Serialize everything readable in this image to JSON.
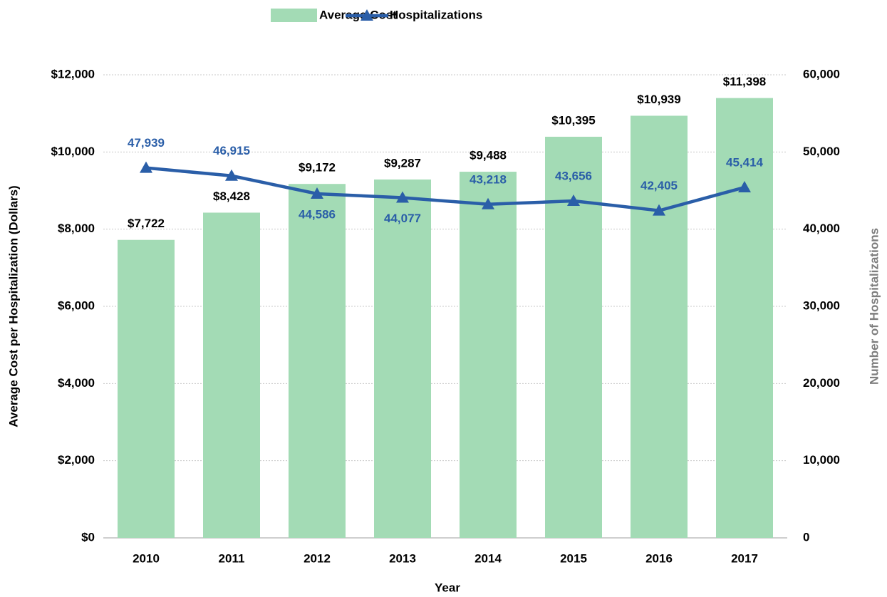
{
  "chart_data": {
    "type": "bar_line",
    "legend": "top",
    "grid": true,
    "categories": [
      "2010",
      "2011",
      "2012",
      "2013",
      "2014",
      "2015",
      "2016",
      "2017"
    ],
    "series": [
      {
        "name": "Average Cost",
        "type": "bar",
        "color": "#a3dbb5",
        "values": [
          7722,
          8428,
          9172,
          9287,
          9488,
          10395,
          10939,
          11398
        ],
        "value_labels": [
          "$7,722",
          "$8,428",
          "$9,172",
          "$9,287",
          "$9,488",
          "$10,395",
          "$10,939",
          "$11,398"
        ]
      },
      {
        "name": "Hospitalizations",
        "type": "line",
        "axis": "y2",
        "color": "#2a5ea8",
        "values": [
          47939,
          46915,
          44586,
          44077,
          43218,
          43656,
          42405,
          45414
        ],
        "value_labels": [
          "47,939",
          "46,915",
          "44,586",
          "44,077",
          "43,218",
          "43,656",
          "42,405",
          "45,414"
        ]
      }
    ],
    "xlabel": "Year",
    "ylabel": "Average Cost per Hospitalization (Dollars)",
    "y2label": "Number of Hospitalizations",
    "ylim": [
      0,
      12000
    ],
    "yticks": [
      {
        "value": 0,
        "label": "$0"
      },
      {
        "value": 2000,
        "label": "$2,000"
      },
      {
        "value": 4000,
        "label": "$4,000"
      },
      {
        "value": 6000,
        "label": "$6,000"
      },
      {
        "value": 8000,
        "label": "$8,000"
      },
      {
        "value": 10000,
        "label": "$10,000"
      },
      {
        "value": 12000,
        "label": "$12,000"
      }
    ],
    "y2lim": [
      0,
      60000
    ],
    "y2ticks": [
      0,
      {
        "value": 10000,
        "label": "10,000"
      },
      {
        "value": 20000,
        "label": "20,000"
      },
      {
        "value": 30000,
        "label": "30,000"
      },
      {
        "value": 40000,
        "label": "40,000"
      },
      {
        "value": 50000,
        "label": "50,000"
      },
      {
        "value": 60000,
        "label": "60,000"
      }
    ]
  }
}
